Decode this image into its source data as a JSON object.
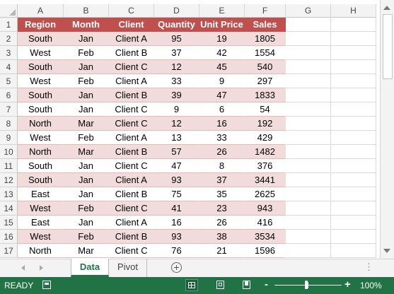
{
  "columns": [
    "A",
    "B",
    "C",
    "D",
    "E",
    "F",
    "G",
    "H"
  ],
  "rows": [
    "1",
    "2",
    "3",
    "4",
    "5",
    "6",
    "7",
    "8",
    "9",
    "10",
    "11",
    "12",
    "13",
    "14",
    "15",
    "16",
    "17"
  ],
  "table": {
    "headers": [
      "Region",
      "Month",
      "Client",
      "Quantity",
      "Unit Price",
      "Sales"
    ],
    "data": [
      [
        "South",
        "Jan",
        "Client A",
        "95",
        "19",
        "1805"
      ],
      [
        "West",
        "Feb",
        "Client B",
        "37",
        "42",
        "1554"
      ],
      [
        "South",
        "Jan",
        "Client C",
        "12",
        "45",
        "540"
      ],
      [
        "West",
        "Feb",
        "Client A",
        "33",
        "9",
        "297"
      ],
      [
        "South",
        "Jan",
        "Client B",
        "39",
        "47",
        "1833"
      ],
      [
        "South",
        "Jan",
        "Client C",
        "9",
        "6",
        "54"
      ],
      [
        "North",
        "Mar",
        "Client C",
        "12",
        "16",
        "192"
      ],
      [
        "West",
        "Feb",
        "Client A",
        "13",
        "33",
        "429"
      ],
      [
        "North",
        "Mar",
        "Client B",
        "57",
        "26",
        "1482"
      ],
      [
        "South",
        "Jan",
        "Client C",
        "47",
        "8",
        "376"
      ],
      [
        "South",
        "Jan",
        "Client A",
        "93",
        "37",
        "3441"
      ],
      [
        "East",
        "Jan",
        "Client B",
        "75",
        "35",
        "2625"
      ],
      [
        "West",
        "Feb",
        "Client C",
        "41",
        "23",
        "943"
      ],
      [
        "East",
        "Jan",
        "Client A",
        "16",
        "26",
        "416"
      ],
      [
        "West",
        "Feb",
        "Client B",
        "93",
        "38",
        "3534"
      ],
      [
        "North",
        "Mar",
        "Client C",
        "76",
        "21",
        "1596"
      ]
    ]
  },
  "sheet_tabs": {
    "active": "Data",
    "other": "Pivot",
    "add": "+",
    "more": "⋮"
  },
  "status": {
    "ready": "READY",
    "zoom_minus": "-",
    "zoom_plus": "+",
    "zoom": "100%",
    "zoom_fraction": 0.5
  },
  "colors": {
    "header_fill": "#c0504d",
    "band_fill": "#f2dcdb",
    "status_bar": "#217346"
  }
}
